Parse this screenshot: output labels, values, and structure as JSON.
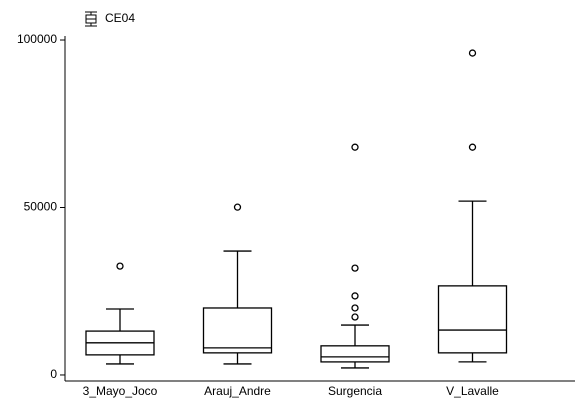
{
  "chart_data": {
    "type": "box",
    "series": [
      {
        "name": "CE04",
        "color": "#000000"
      }
    ],
    "categories": [
      "3_Mayo_Joco",
      "Arauj_Andre",
      "Surgencia",
      "V_Lavalle"
    ],
    "boxes": [
      {
        "min": 3300,
        "q1": 6000,
        "median": 9600,
        "q3": 13100,
        "max": 19700,
        "outliers": [
          32500
        ]
      },
      {
        "min": 3300,
        "q1": 6600,
        "median": 8100,
        "q3": 20000,
        "max": 37000,
        "outliers": [
          50100
        ]
      },
      {
        "min": 2100,
        "q1": 3900,
        "median": 5400,
        "q3": 8700,
        "max": 14900,
        "outliers": [
          17300,
          20000,
          23600,
          31900,
          68000
        ]
      },
      {
        "min": 3900,
        "q1": 6600,
        "median": 13400,
        "q3": 26600,
        "max": 51900,
        "outliers": [
          68000,
          96100
        ]
      }
    ],
    "ylim": [
      -1800,
      101200
    ],
    "yticks": [
      0,
      50000,
      100000
    ],
    "grid": false
  }
}
